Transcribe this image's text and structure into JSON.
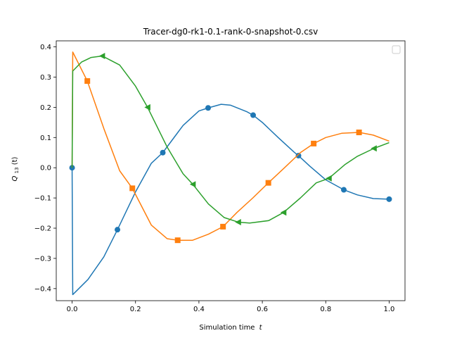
{
  "chart_data": {
    "type": "line",
    "title": "Tracer-dg0-rk1-0.1-rank-0-snapshot-0.csv",
    "xlabel_text": "Simulation time",
    "xlabel_var": "t",
    "ylabel_main": "Q",
    "ylabel_sub": "13",
    "ylabel_arg": "(t)",
    "xlim": [
      -0.05,
      1.05
    ],
    "ylim": [
      -0.44,
      0.42
    ],
    "xticks": [
      0.0,
      0.2,
      0.4,
      0.6,
      0.8,
      1.0
    ],
    "xtick_labels": [
      "0.0",
      "0.2",
      "0.4",
      "0.6",
      "0.8",
      "1.0"
    ],
    "yticks": [
      -0.4,
      -0.3,
      -0.2,
      -0.1,
      0.0,
      0.1,
      0.2,
      0.3,
      0.4
    ],
    "ytick_labels": [
      "−0.4",
      "−0.3",
      "−0.2",
      "−0.1",
      "0.0",
      "0.1",
      "0.2",
      "0.3",
      "0.4"
    ],
    "grid": false,
    "legend": "upper right (empty)",
    "series": [
      {
        "color": "#1f77b4",
        "marker": "circle",
        "x": [
          0.0,
          0.002,
          0.05,
          0.1,
          0.143,
          0.2,
          0.25,
          0.286,
          0.35,
          0.4,
          0.429,
          0.47,
          0.5,
          0.55,
          0.571,
          0.6,
          0.65,
          0.7,
          0.714,
          0.75,
          0.8,
          0.857,
          0.9,
          0.95,
          1.0
        ],
        "y": [
          0.0,
          -0.42,
          -0.37,
          -0.295,
          -0.205,
          -0.08,
          0.015,
          0.05,
          0.14,
          0.188,
          0.198,
          0.21,
          0.207,
          0.186,
          0.174,
          0.15,
          0.1,
          0.052,
          0.04,
          0.005,
          -0.04,
          -0.073,
          -0.09,
          -0.102,
          -0.104
        ],
        "marker_x": [
          0.0,
          0.143,
          0.286,
          0.429,
          0.571,
          0.714,
          0.857,
          1.0
        ],
        "marker_y": [
          0.0,
          -0.205,
          0.05,
          0.198,
          0.174,
          0.04,
          -0.073,
          -0.104
        ]
      },
      {
        "color": "#ff7f0e",
        "marker": "square",
        "x": [
          0.0,
          0.002,
          0.048,
          0.1,
          0.15,
          0.19,
          0.25,
          0.3,
          0.333,
          0.38,
          0.43,
          0.476,
          0.52,
          0.57,
          0.619,
          0.67,
          0.72,
          0.762,
          0.8,
          0.85,
          0.905,
          0.95,
          1.0
        ],
        "y": [
          0.0,
          0.383,
          0.287,
          0.13,
          -0.01,
          -0.068,
          -0.19,
          -0.235,
          -0.24,
          -0.24,
          -0.22,
          -0.195,
          -0.148,
          -0.1,
          -0.05,
          0.0,
          0.05,
          0.08,
          0.1,
          0.114,
          0.117,
          0.108,
          0.088
        ],
        "marker_x": [
          0.048,
          0.19,
          0.333,
          0.476,
          0.619,
          0.762,
          0.905
        ],
        "marker_y": [
          0.287,
          -0.068,
          -0.24,
          -0.195,
          -0.05,
          0.08,
          0.117
        ]
      },
      {
        "color": "#2ca02c",
        "marker": "triangle-left",
        "x": [
          0.0,
          0.002,
          0.03,
          0.06,
          0.095,
          0.15,
          0.2,
          0.238,
          0.3,
          0.35,
          0.381,
          0.43,
          0.48,
          0.524,
          0.56,
          0.62,
          0.667,
          0.72,
          0.77,
          0.81,
          0.86,
          0.9,
          0.952,
          1.0
        ],
        "y": [
          0.0,
          0.32,
          0.35,
          0.365,
          0.37,
          0.34,
          0.27,
          0.2,
          0.068,
          -0.02,
          -0.055,
          -0.12,
          -0.165,
          -0.18,
          -0.183,
          -0.175,
          -0.148,
          -0.1,
          -0.05,
          -0.035,
          0.01,
          0.038,
          0.064,
          0.083
        ],
        "marker_x": [
          0.095,
          0.238,
          0.381,
          0.524,
          0.667,
          0.81,
          0.952
        ],
        "marker_y": [
          0.37,
          0.2,
          -0.055,
          -0.18,
          -0.148,
          -0.035,
          0.064
        ]
      }
    ]
  }
}
